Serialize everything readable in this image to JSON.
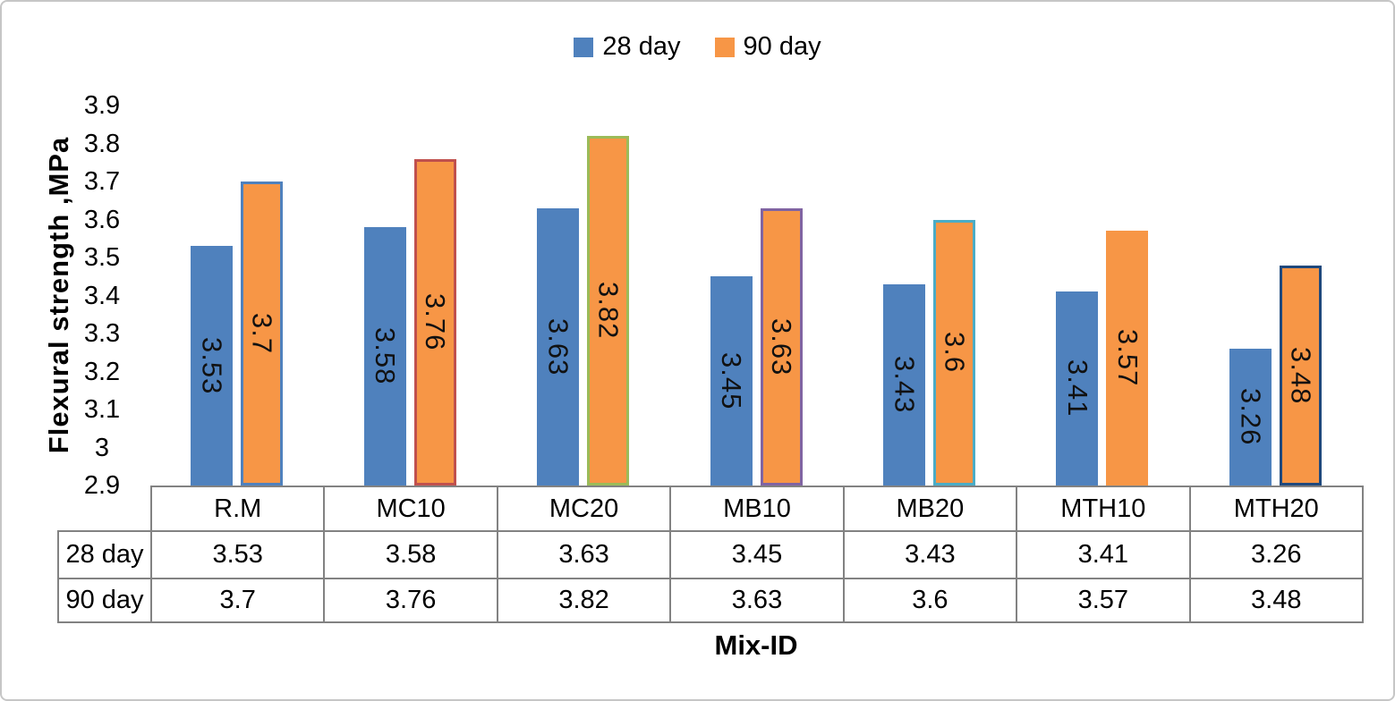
{
  "chart_data": {
    "type": "bar",
    "title": "",
    "xlabel": "Mix-ID",
    "ylabel": "Flexural strength ,MPa",
    "ylim": [
      2.9,
      3.9
    ],
    "ytick_labels": [
      "3.9",
      "3.8",
      "3.7",
      "3.6",
      "3.5",
      "3.4",
      "3.3",
      "3.2",
      "3.1",
      "3",
      "2.9"
    ],
    "grid": false,
    "legend_position": "top-center",
    "categories": [
      "R.M",
      "MC10",
      "MC20",
      "MB10",
      "MB20",
      "MTH10",
      "MTH20"
    ],
    "series": [
      {
        "name": "28 day",
        "color": "#4F81BD",
        "values": [
          3.53,
          3.58,
          3.63,
          3.45,
          3.43,
          3.41,
          3.26
        ],
        "labels": [
          "3.53",
          "3.58",
          "3.63",
          "3.45",
          "3.43",
          "3.41",
          "3.26"
        ]
      },
      {
        "name": "90 day",
        "color": "#F79646",
        "values": [
          3.7,
          3.76,
          3.82,
          3.63,
          3.6,
          3.57,
          3.48
        ],
        "labels": [
          "3.7",
          "3.76",
          "3.82",
          "3.63",
          "3.6",
          "3.57",
          "3.48"
        ],
        "point_border_colors": [
          "#4F81BD",
          "#C0504D",
          "#9BBB59",
          "#8064A2",
          "#4BACC6",
          "#F79646",
          "#1F497D"
        ]
      }
    ],
    "data_table": {
      "row_labels": [
        "28 day",
        "90 day"
      ]
    }
  }
}
